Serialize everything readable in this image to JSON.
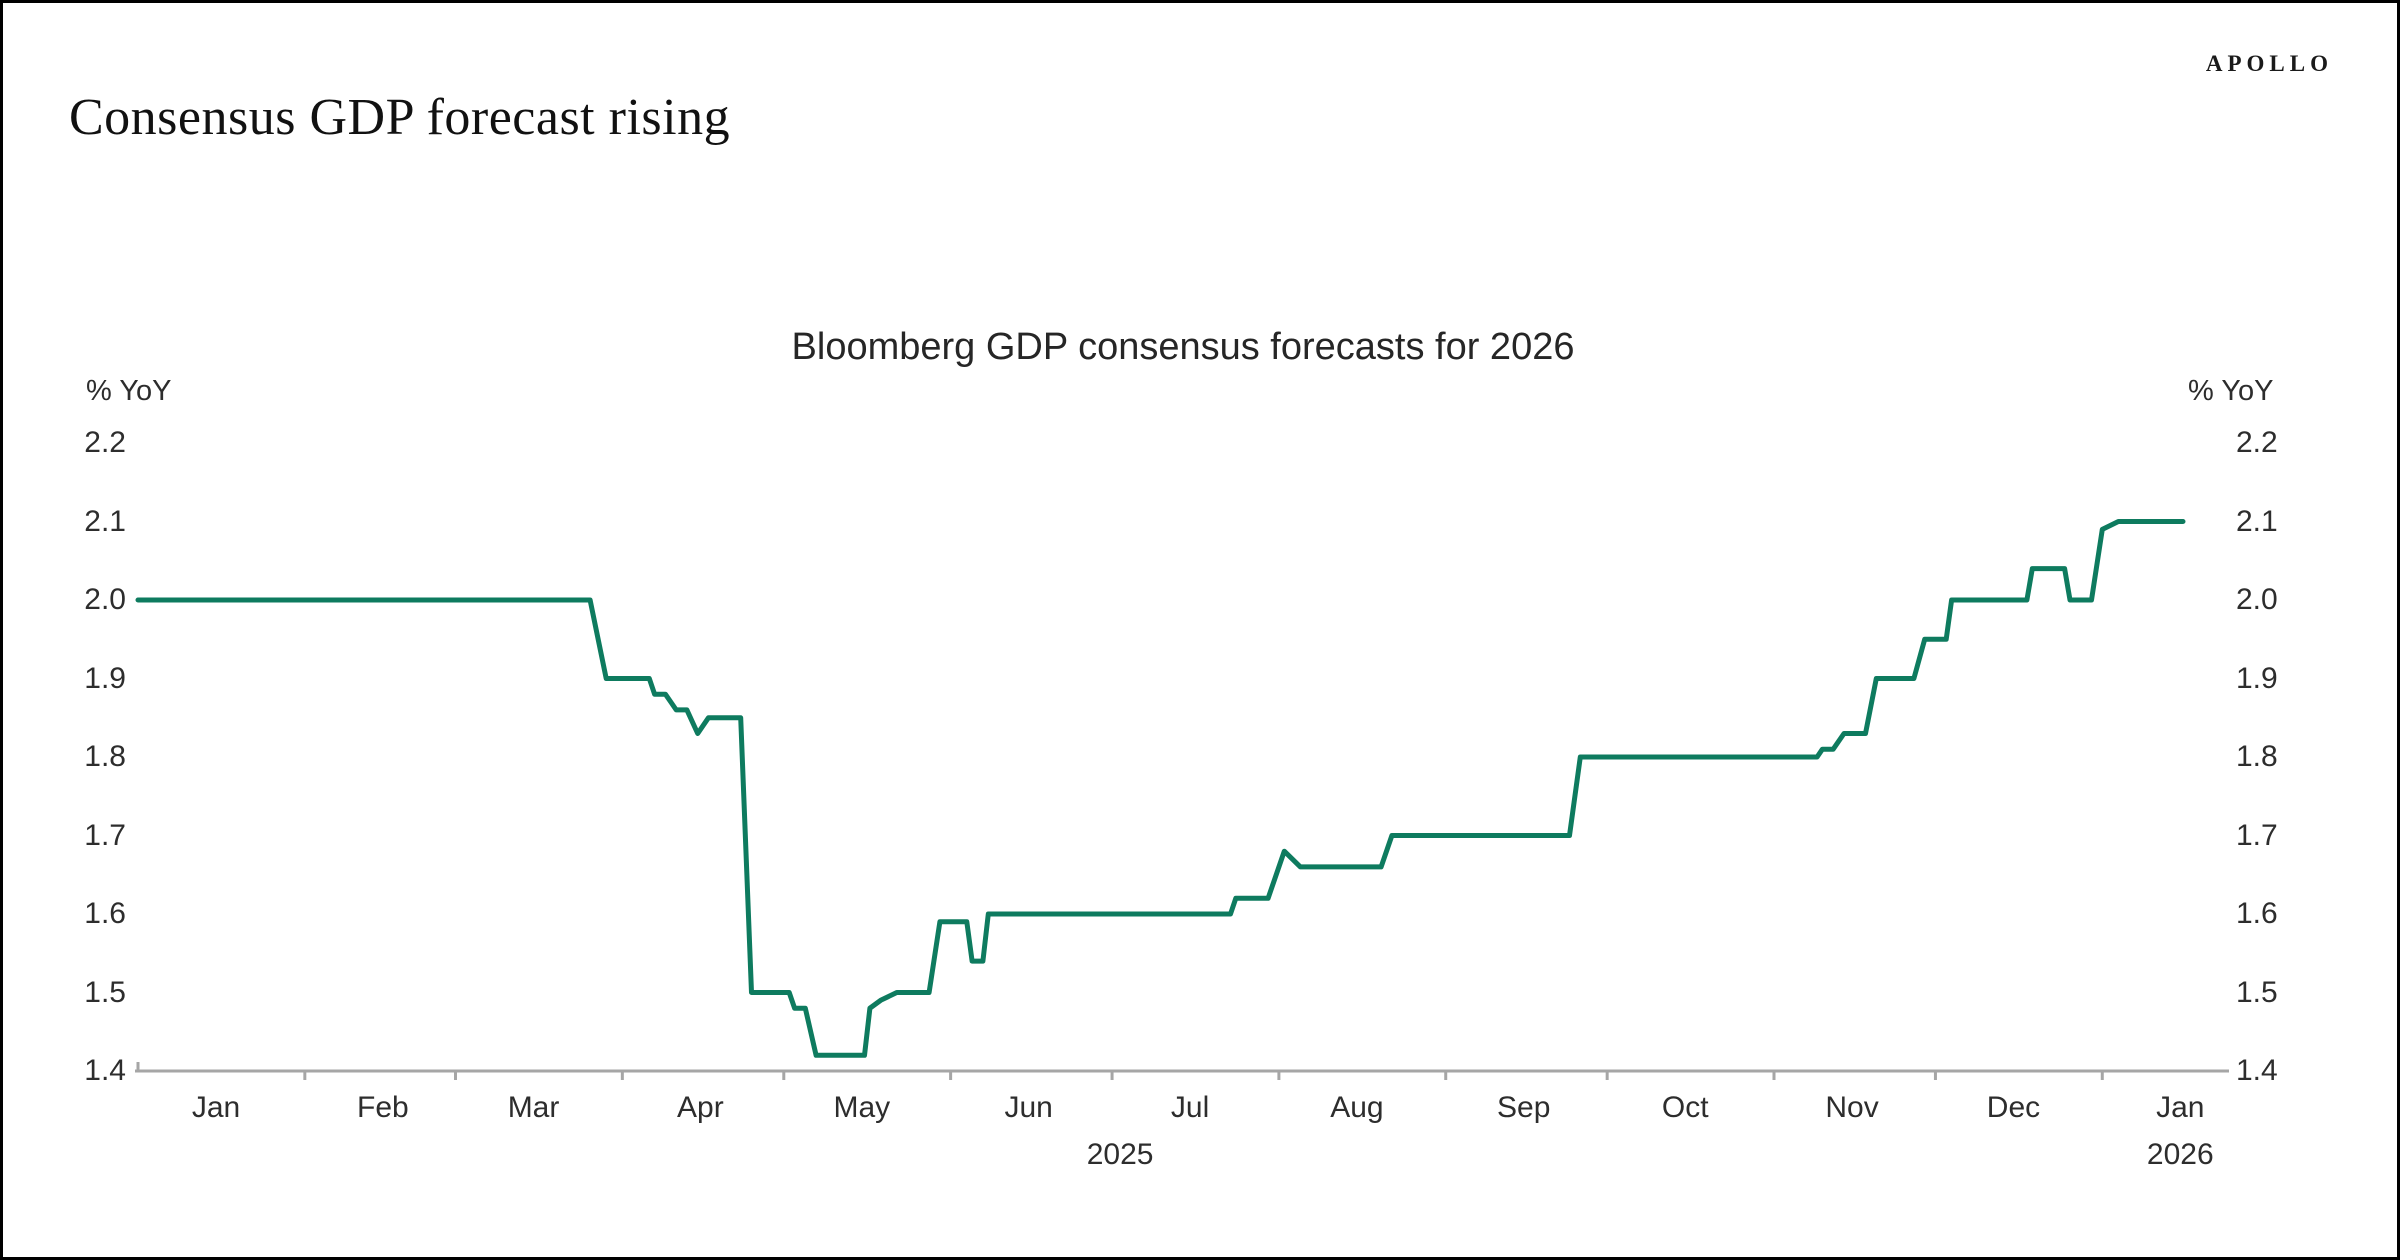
{
  "header": {
    "title": "Consensus GDP forecast rising",
    "brand": "APOLLO"
  },
  "chart": {
    "title": "Bloomberg GDP consensus forecasts for 2026",
    "y_unit": "% YoY"
  },
  "chart_data": {
    "type": "line",
    "title": "Bloomberg GDP consensus forecasts for 2026",
    "xlabel": "",
    "ylabel": "% YoY",
    "ylim": [
      1.4,
      2.2
    ],
    "yticks": [
      2.2,
      2.1,
      2.0,
      1.9,
      1.8,
      1.7,
      1.6,
      1.5,
      1.4
    ],
    "x_range": [
      "2025-01-01",
      "2026-01-16"
    ],
    "x_months": [
      "Jan",
      "Feb",
      "Mar",
      "Apr",
      "May",
      "Jun",
      "Jul",
      "Aug",
      "Sep",
      "Oct",
      "Nov",
      "Dec",
      "Jan"
    ],
    "x_years": [
      "2025",
      "2026"
    ],
    "grid": false,
    "legend": "none",
    "line_color": "#0e7b5f",
    "axis_color": "#a6a6a6",
    "series": [
      {
        "name": "Bloomberg GDP consensus forecast for 2026",
        "color": "#0e7b5f",
        "points": [
          [
            "2025-01-01",
            2.0
          ],
          [
            "2025-03-26",
            2.0
          ],
          [
            "2025-03-29",
            1.9
          ],
          [
            "2025-04-06",
            1.9
          ],
          [
            "2025-04-07",
            1.88
          ],
          [
            "2025-04-09",
            1.88
          ],
          [
            "2025-04-10",
            1.87
          ],
          [
            "2025-04-11",
            1.86
          ],
          [
            "2025-04-13",
            1.86
          ],
          [
            "2025-04-15",
            1.83
          ],
          [
            "2025-04-17",
            1.85
          ],
          [
            "2025-04-23",
            1.85
          ],
          [
            "2025-04-25",
            1.5
          ],
          [
            "2025-05-02",
            1.5
          ],
          [
            "2025-05-03",
            1.48
          ],
          [
            "2025-05-05",
            1.48
          ],
          [
            "2025-05-07",
            1.42
          ],
          [
            "2025-05-16",
            1.42
          ],
          [
            "2025-05-17",
            1.48
          ],
          [
            "2025-05-19",
            1.49
          ],
          [
            "2025-05-22",
            1.5
          ],
          [
            "2025-05-28",
            1.5
          ],
          [
            "2025-05-30",
            1.59
          ],
          [
            "2025-06-04",
            1.59
          ],
          [
            "2025-06-05",
            1.54
          ],
          [
            "2025-06-07",
            1.54
          ],
          [
            "2025-06-08",
            1.6
          ],
          [
            "2025-07-23",
            1.6
          ],
          [
            "2025-07-24",
            1.62
          ],
          [
            "2025-07-30",
            1.62
          ],
          [
            "2025-08-02",
            1.68
          ],
          [
            "2025-08-05",
            1.66
          ],
          [
            "2025-08-20",
            1.66
          ],
          [
            "2025-08-22",
            1.7
          ],
          [
            "2025-09-24",
            1.7
          ],
          [
            "2025-09-26",
            1.8
          ],
          [
            "2025-11-09",
            1.8
          ],
          [
            "2025-11-10",
            1.81
          ],
          [
            "2025-11-12",
            1.81
          ],
          [
            "2025-11-14",
            1.83
          ],
          [
            "2025-11-18",
            1.83
          ],
          [
            "2025-11-20",
            1.9
          ],
          [
            "2025-11-27",
            1.9
          ],
          [
            "2025-11-29",
            1.95
          ],
          [
            "2025-12-03",
            1.95
          ],
          [
            "2025-12-04",
            2.0
          ],
          [
            "2025-12-18",
            2.0
          ],
          [
            "2025-12-19",
            2.04
          ],
          [
            "2025-12-25",
            2.04
          ],
          [
            "2025-12-26",
            2.0
          ],
          [
            "2025-12-30",
            2.0
          ],
          [
            "2026-01-01",
            2.09
          ],
          [
            "2026-01-04",
            2.1
          ],
          [
            "2026-01-16",
            2.1
          ]
        ]
      }
    ]
  }
}
